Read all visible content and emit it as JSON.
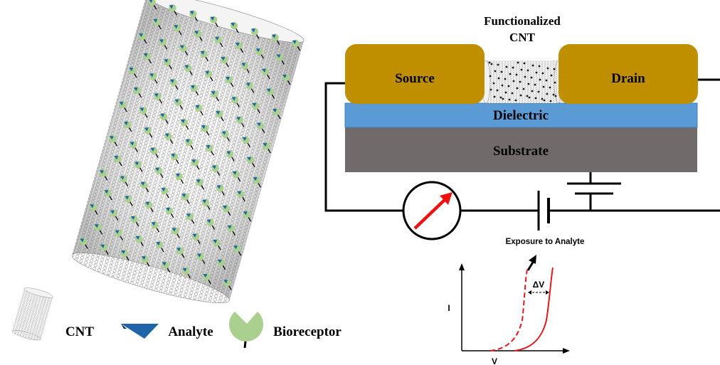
{
  "device": {
    "title_line1": "Functionalized",
    "title_line2": "CNT",
    "source_label": "Source",
    "drain_label": "Drain",
    "dielectric_label": "Dielectric",
    "substrate_label": "Substrate"
  },
  "graph": {
    "exposure_label": "Exposure to Analyte",
    "delta_label": "ΔV",
    "y_axis_label": "I",
    "x_axis_label": "V"
  },
  "legend": {
    "cnt_label": "CNT",
    "analyte_label": "Analyte",
    "bioreceptor_label": "Bioreceptor"
  },
  "colors": {
    "electrode": "#bf8f00",
    "dielectric": "#5b9bd5",
    "substrate": "#706b6a",
    "bioreceptor": "#a9d08e",
    "analyte": "#1f63a8",
    "curve": "#e31a1c",
    "needle": "#ee1111"
  },
  "icons": {
    "meter": "ammeter-dial-icon",
    "battery": "battery-icon",
    "ground": "ground-icon",
    "bioreceptor": "bioreceptor-icon",
    "analyte": "analyte-triangle-icon",
    "cnt": "cnt-cylinder-icon"
  }
}
